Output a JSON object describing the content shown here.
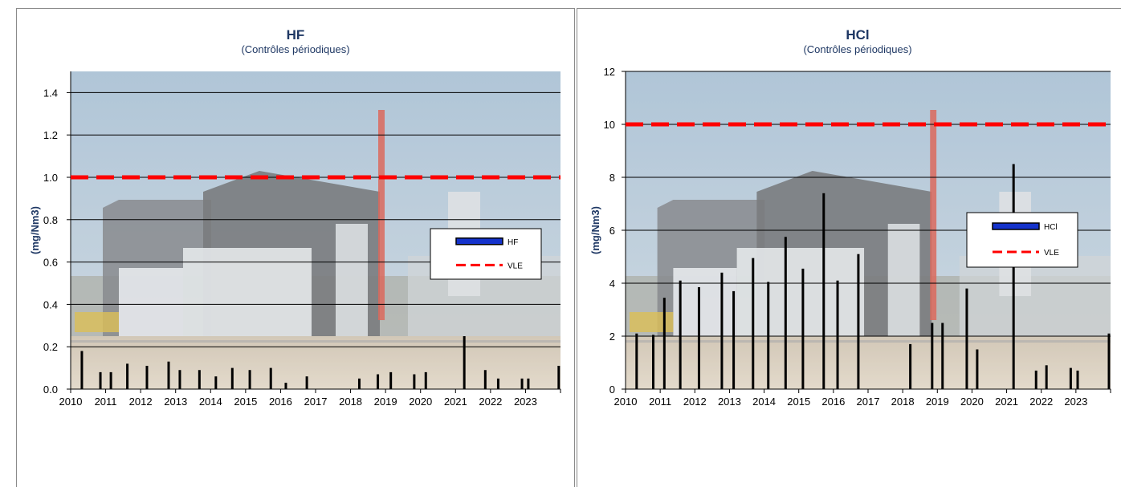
{
  "colors": {
    "bar": "#000000",
    "vle": "#ff0000",
    "legend_bar": "#1533cc",
    "title": "#1f3864",
    "grid": "#000000",
    "photo_sky": "#a9bfd1",
    "photo_ground": "#d2c6b2"
  },
  "chart_data": [
    {
      "type": "bar",
      "title": "HF",
      "subtitle": "(Contrôles périodiques)",
      "ylabel": "(mg/Nm3)",
      "xlabel": "",
      "xlim": [
        2010,
        2024
      ],
      "ylim": [
        0,
        1.5
      ],
      "yticks": [
        "0.0",
        "0.2",
        "0.4",
        "0.6",
        "0.8",
        "1.0",
        "1.2",
        "1.4"
      ],
      "ytick_values": [
        0,
        0.2,
        0.4,
        0.6,
        0.8,
        1.0,
        1.2,
        1.4
      ],
      "xticks": [
        "2010",
        "2011",
        "2012",
        "2013",
        "2014",
        "2015",
        "2016",
        "2017",
        "2018",
        "2019",
        "2020",
        "2021",
        "2022",
        "2023"
      ],
      "grid": true,
      "background": "photo",
      "vle": 1.0,
      "legend": {
        "position": "right",
        "entries": [
          "HF",
          "VLE"
        ]
      },
      "series": [
        {
          "name": "HF",
          "x": [
            2010.32,
            2010.85,
            2011.15,
            2011.62,
            2012.18,
            2012.8,
            2013.12,
            2013.68,
            2014.15,
            2014.62,
            2015.12,
            2015.72,
            2016.15,
            2016.75,
            2018.25,
            2018.78,
            2019.15,
            2019.82,
            2020.15,
            2021.25,
            2021.85,
            2022.22,
            2022.9,
            2023.08,
            2023.95
          ],
          "values": [
            0.18,
            0.08,
            0.08,
            0.12,
            0.11,
            0.13,
            0.09,
            0.09,
            0.06,
            0.1,
            0.09,
            0.1,
            0.03,
            0.06,
            0.05,
            0.07,
            0.08,
            0.07,
            0.08,
            0.25,
            0.09,
            0.05,
            0.05,
            0.05,
            0.11
          ]
        },
        {
          "name": "VLE",
          "x": [
            2010,
            2024
          ],
          "values": [
            1.0,
            1.0
          ]
        }
      ]
    },
    {
      "type": "bar",
      "title": "HCl",
      "subtitle": "(Contrôles périodiques)",
      "ylabel": "(mg/Nm3)",
      "xlabel": "",
      "xlim": [
        2010,
        2024
      ],
      "ylim": [
        0,
        12
      ],
      "yticks": [
        "0",
        "2",
        "4",
        "6",
        "8",
        "10",
        "12"
      ],
      "ytick_values": [
        0,
        2,
        4,
        6,
        8,
        10,
        12
      ],
      "xticks": [
        "2010",
        "2011",
        "2012",
        "2013",
        "2014",
        "2015",
        "2016",
        "2017",
        "2018",
        "2019",
        "2020",
        "2021",
        "2022",
        "2023"
      ],
      "grid": true,
      "background": "photo",
      "vle": 10,
      "legend": {
        "position": "right",
        "entries": [
          "HCl",
          "VLE"
        ]
      },
      "series": [
        {
          "name": "HCl",
          "x": [
            2010.32,
            2010.8,
            2011.12,
            2011.58,
            2012.12,
            2012.78,
            2013.12,
            2013.68,
            2014.12,
            2014.62,
            2015.12,
            2015.72,
            2016.12,
            2016.72,
            2018.22,
            2018.85,
            2019.15,
            2019.85,
            2020.15,
            2021.2,
            2021.85,
            2022.15,
            2022.85,
            2023.05,
            2024.0
          ],
          "values": [
            2.1,
            2.05,
            3.45,
            4.1,
            3.85,
            4.4,
            3.7,
            4.95,
            4.05,
            5.75,
            4.55,
            7.4,
            4.1,
            5.1,
            1.7,
            2.5,
            2.5,
            3.8,
            1.5,
            8.5,
            0.7,
            0.9,
            0.8,
            0.7,
            2.1
          ]
        },
        {
          "name": "VLE",
          "x": [
            2010,
            2024
          ],
          "values": [
            10,
            10
          ]
        }
      ]
    }
  ]
}
